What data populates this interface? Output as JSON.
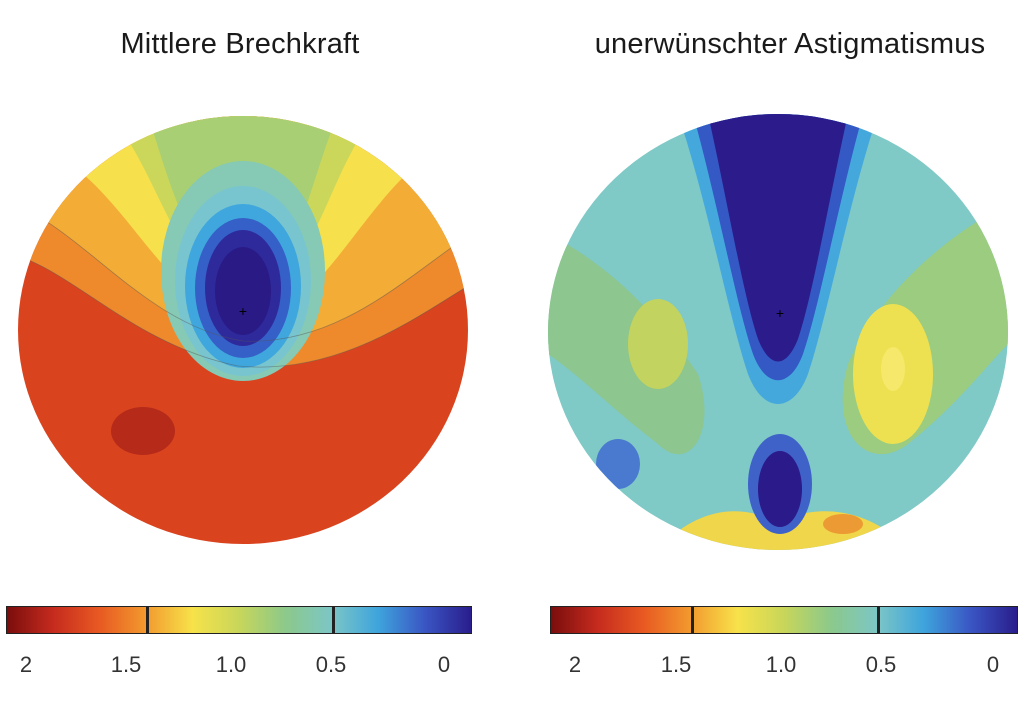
{
  "panels": [
    {
      "title": "Mittlere Brechkraft"
    },
    {
      "title": "unerwünschter Astigmatismus"
    }
  ],
  "colorbar": {
    "tick_labels": [
      "2",
      "1.5",
      "1.0",
      "0.5",
      "0"
    ],
    "gradient_colors": [
      "#7a0d0d",
      "#c62b1e",
      "#e85a22",
      "#f29a2e",
      "#f7e24a",
      "#c8d65a",
      "#8cc98a",
      "#7cc6c6",
      "#3ea4dc",
      "#3a56c4",
      "#2a1d8c"
    ]
  },
  "legend_palette": {
    "dark_red": "#b02418",
    "red": "#d9441f",
    "orange": "#ef8a2a",
    "yellow": "#f5e04a",
    "light_green": "#b9d262",
    "green": "#8dc68e",
    "cyan": "#7fc9c6",
    "light_blue": "#40a8df",
    "blue": "#3257c6",
    "dark_blue": "#2b1a8a"
  }
}
